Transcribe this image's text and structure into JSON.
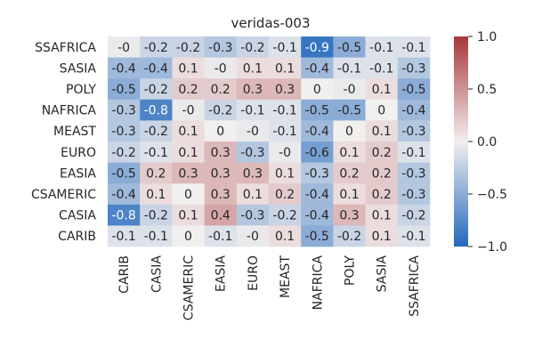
{
  "chart_data": {
    "type": "heatmap",
    "title": "veridas-003",
    "x_categories": [
      "CARIB",
      "CASIA",
      "CSAMERIC",
      "EASIA",
      "EURO",
      "MEAST",
      "NAFRICA",
      "POLY",
      "SASIA",
      "SSAFRICA"
    ],
    "y_categories": [
      "SSAFRICA",
      "SASIA",
      "POLY",
      "NAFRICA",
      "MEAST",
      "EURO",
      "EASIA",
      "CSAMERIC",
      "CASIA",
      "CARIB"
    ],
    "values": [
      [
        -0.04,
        -0.2,
        -0.2,
        -0.3,
        -0.2,
        -0.1,
        -0.9,
        -0.5,
        -0.1,
        -0.1
      ],
      [
        -0.4,
        -0.4,
        0.1,
        -0.04,
        0.1,
        0.1,
        -0.4,
        -0.1,
        -0.1,
        -0.3
      ],
      [
        -0.5,
        -0.2,
        0.2,
        0.2,
        0.3,
        0.3,
        0.0,
        -0.04,
        0.1,
        -0.5
      ],
      [
        -0.3,
        -0.8,
        -0.04,
        -0.2,
        -0.1,
        -0.1,
        -0.5,
        -0.5,
        0.0,
        -0.4
      ],
      [
        -0.3,
        -0.2,
        0.1,
        0.0,
        -0.04,
        -0.1,
        -0.4,
        0.0,
        0.1,
        -0.3
      ],
      [
        -0.2,
        -0.1,
        0.1,
        0.3,
        -0.3,
        -0.04,
        -0.6,
        0.1,
        0.2,
        -0.1
      ],
      [
        -0.5,
        0.2,
        0.3,
        0.3,
        0.3,
        0.1,
        -0.3,
        0.2,
        0.2,
        -0.3
      ],
      [
        -0.4,
        0.1,
        0.0,
        0.3,
        0.1,
        0.2,
        -0.4,
        0.1,
        0.2,
        -0.3
      ],
      [
        -0.8,
        -0.2,
        0.1,
        0.4,
        -0.3,
        -0.2,
        -0.4,
        0.3,
        0.1,
        -0.2
      ],
      [
        -0.1,
        -0.1,
        0.0,
        -0.1,
        -0.04,
        0.1,
        -0.5,
        -0.2,
        0.1,
        -0.1
      ]
    ],
    "labels": [
      [
        "-0",
        "-0.2",
        "-0.2",
        "-0.3",
        "-0.2",
        "-0.1",
        "-0.9",
        "-0.5",
        "-0.1",
        "-0.1"
      ],
      [
        "-0.4",
        "-0.4",
        "0.1",
        "-0",
        "0.1",
        "0.1",
        "-0.4",
        "-0.1",
        "-0.1",
        "-0.3"
      ],
      [
        "-0.5",
        "-0.2",
        "0.2",
        "0.2",
        "0.3",
        "0.3",
        "0",
        "-0",
        "0.1",
        "-0.5"
      ],
      [
        "-0.3",
        "-0.8",
        "-0",
        "-0.2",
        "-0.1",
        "-0.1",
        "-0.5",
        "-0.5",
        "0",
        "-0.4"
      ],
      [
        "-0.3",
        "-0.2",
        "0.1",
        "0",
        "-0",
        "-0.1",
        "-0.4",
        "0",
        "0.1",
        "-0.3"
      ],
      [
        "-0.2",
        "-0.1",
        "0.1",
        "0.3",
        "-0.3",
        "-0",
        "-0.6",
        "0.1",
        "0.2",
        "-0.1"
      ],
      [
        "-0.5",
        "0.2",
        "0.3",
        "0.3",
        "0.3",
        "0.1",
        "-0.3",
        "0.2",
        "0.2",
        "-0.3"
      ],
      [
        "-0.4",
        "0.1",
        "0",
        "0.3",
        "0.1",
        "0.2",
        "-0.4",
        "0.1",
        "0.2",
        "-0.3"
      ],
      [
        "-0.8",
        "-0.2",
        "0.1",
        "0.4",
        "-0.3",
        "-0.2",
        "-0.4",
        "0.3",
        "0.1",
        "-0.2"
      ],
      [
        "-0.1",
        "-0.1",
        "0",
        "-0.1",
        "-0",
        "0.1",
        "-0.5",
        "-0.2",
        "0.1",
        "-0.1"
      ]
    ],
    "colorbar": {
      "min": -1.0,
      "max": 1.0,
      "ticks": [
        1.0,
        0.5,
        0.0,
        -0.5,
        -1.0
      ],
      "tick_labels": [
        "1.0",
        "0.5",
        "0.0",
        "−0.5",
        "−1.0"
      ],
      "colormap": "vlag",
      "colors": {
        "low": "#2369bd",
        "mid": "#f2efef",
        "high": "#a9373b"
      }
    },
    "grid": false,
    "legend": "colorbar-right"
  }
}
